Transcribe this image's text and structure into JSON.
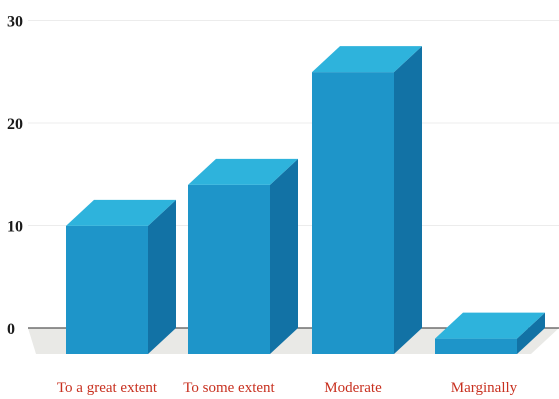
{
  "chart_data": {
    "type": "bar",
    "style": "3d",
    "categories": [
      "To a great extent",
      "To some extent",
      "Moderate",
      "Marginally"
    ],
    "values": [
      12.5,
      16.5,
      27.5,
      1.5
    ],
    "ylim": [
      0,
      30
    ],
    "yticks": [
      "0",
      "10",
      "20",
      "30"
    ],
    "grid": true,
    "legend": "none",
    "colors": {
      "bar_front": "#1e95c9",
      "bar_top": "#2eb3dc",
      "bar_side": "#1272a5",
      "floor": "#e9e9e6",
      "xtick_text": "#c8301f",
      "ytick_text": "#1a1a1a"
    }
  }
}
